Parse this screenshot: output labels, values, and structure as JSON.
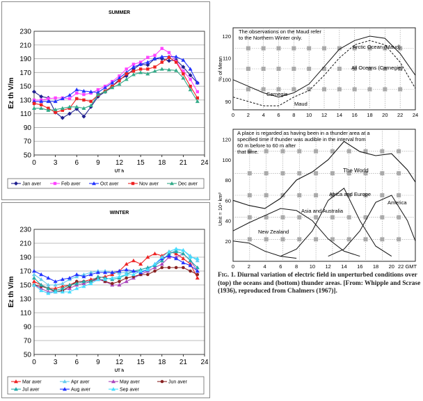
{
  "chart_data": [
    {
      "type": "line",
      "title": "SUMMER",
      "xlabel": "UT h",
      "ylabel": "Ez th V/m",
      "xlim": [
        0,
        24
      ],
      "ylim": [
        50,
        230
      ],
      "x_ticks": [
        "0",
        "3",
        "6",
        "9",
        "12",
        "15",
        "18",
        "21",
        "24"
      ],
      "y_ticks": [
        "50",
        "70",
        "90",
        "110",
        "130",
        "150",
        "170",
        "190",
        "210",
        "230"
      ],
      "grid": true,
      "legend": "bottom",
      "x": [
        0,
        1,
        2,
        3,
        4,
        5,
        6,
        7,
        8,
        9,
        10,
        11,
        12,
        13,
        14,
        15,
        16,
        17,
        18,
        19,
        20,
        21,
        22,
        23
      ],
      "series": [
        {
          "name": "Jan aver",
          "color": "#1f1f8f",
          "marker": "diamond",
          "values": [
            142,
            135,
            133,
            112,
            104,
            110,
            117,
            106,
            120,
            135,
            142,
            150,
            160,
            165,
            175,
            182,
            181,
            190,
            190,
            187,
            188,
            178,
            166,
            155
          ]
        },
        {
          "name": "Feb aver",
          "color": "#ff44ff",
          "marker": "square",
          "values": [
            130,
            130,
            132,
            133,
            133,
            132,
            140,
            138,
            140,
            145,
            150,
            157,
            165,
            175,
            182,
            185,
            192,
            195,
            205,
            199,
            186,
            172,
            160,
            142
          ]
        },
        {
          "name": "Oct aver",
          "color": "#2233ff",
          "marker": "triangle",
          "values": [
            128,
            128,
            128,
            128,
            132,
            137,
            145,
            143,
            142,
            141,
            148,
            155,
            162,
            170,
            178,
            182,
            185,
            190,
            193,
            193,
            193,
            188,
            175,
            155
          ]
        },
        {
          "name": "Nov aver",
          "color": "#ee2222",
          "marker": "square",
          "values": [
            125,
            123,
            118,
            112,
            115,
            118,
            132,
            130,
            128,
            137,
            143,
            150,
            158,
            168,
            172,
            175,
            175,
            178,
            185,
            192,
            185,
            168,
            150,
            133
          ]
        },
        {
          "name": "Dec aver",
          "color": "#33aa88",
          "marker": "triangle",
          "values": [
            118,
            118,
            115,
            116,
            118,
            120,
            120,
            118,
            122,
            138,
            142,
            148,
            153,
            160,
            167,
            170,
            168,
            172,
            175,
            174,
            173,
            162,
            145,
            128
          ]
        }
      ]
    },
    {
      "type": "line",
      "title": "WINTER",
      "xlabel": "UT h",
      "ylabel": "Ez th V/m",
      "xlim": [
        0,
        24
      ],
      "ylim": [
        50,
        230
      ],
      "x_ticks": [
        "0",
        "3",
        "6",
        "9",
        "12",
        "15",
        "18",
        "21",
        "24"
      ],
      "y_ticks": [
        "50",
        "70",
        "90",
        "110",
        "130",
        "150",
        "170",
        "190",
        "210",
        "230"
      ],
      "grid": true,
      "legend": "bottom",
      "x": [
        0,
        1,
        2,
        3,
        4,
        5,
        6,
        7,
        8,
        9,
        10,
        11,
        12,
        13,
        14,
        15,
        16,
        17,
        18,
        19,
        20,
        21,
        22,
        23
      ],
      "series": [
        {
          "name": "Mar aver",
          "color": "#ee2222",
          "marker": "triangle",
          "values": [
            155,
            150,
            145,
            145,
            148,
            150,
            155,
            155,
            158,
            160,
            162,
            165,
            170,
            180,
            185,
            180,
            190,
            195,
            192,
            198,
            195,
            188,
            180,
            160
          ]
        },
        {
          "name": "Apr aver",
          "color": "#66ccee",
          "marker": "triangle",
          "values": [
            165,
            158,
            150,
            150,
            152,
            158,
            162,
            165,
            168,
            170,
            170,
            168,
            167,
            168,
            170,
            172,
            175,
            178,
            185,
            195,
            200,
            200,
            192,
            185
          ]
        },
        {
          "name": "May aver",
          "color": "#aa44bb",
          "marker": "triangle",
          "values": [
            150,
            145,
            140,
            140,
            142,
            145,
            150,
            152,
            155,
            158,
            155,
            150,
            150,
            155,
            160,
            165,
            170,
            175,
            180,
            190,
            190,
            195,
            185,
            170
          ]
        },
        {
          "name": "Jun aver",
          "color": "#882222",
          "marker": "circle",
          "values": [
            150,
            148,
            145,
            140,
            142,
            148,
            155,
            155,
            155,
            160,
            155,
            152,
            155,
            160,
            162,
            165,
            165,
            170,
            175,
            175,
            175,
            175,
            170,
            165
          ]
        },
        {
          "name": "Jul aver",
          "color": "#22aaaa",
          "marker": "triangle",
          "values": [
            160,
            150,
            145,
            142,
            145,
            150,
            152,
            155,
            155,
            162,
            160,
            158,
            160,
            165,
            170,
            172,
            175,
            178,
            185,
            195,
            198,
            195,
            185,
            175
          ]
        },
        {
          "name": "Aug aver",
          "color": "#2233ff",
          "marker": "triangle",
          "values": [
            170,
            165,
            160,
            155,
            158,
            160,
            165,
            162,
            165,
            168,
            168,
            168,
            170,
            172,
            170,
            168,
            172,
            180,
            188,
            192,
            188,
            182,
            178,
            170
          ]
        },
        {
          "name": "Sep aver",
          "color": "#44ddff",
          "marker": "triangle",
          "values": [
            150,
            142,
            138,
            140,
            140,
            140,
            145,
            148,
            152,
            158,
            158,
            160,
            162,
            165,
            165,
            170,
            172,
            180,
            190,
            198,
            202,
            200,
            190,
            188
          ]
        }
      ]
    }
  ],
  "figure": {
    "caption_label": "Fig. 1.",
    "caption_text": "Diurnal variation of electric field in unperturbed conditions over (top) the oceans and (bottom) thunder areas. [From: Whipple and Scrase (1936), reproduced from Chalmers (1967)].",
    "top": {
      "note": "The observations on the Maud refer to the Northern Winter only.",
      "ylabel": "% of Mean",
      "y_ticks": [
        "90",
        "100",
        "110",
        "120"
      ],
      "x_ticks": [
        "0",
        "2",
        "4",
        "6",
        "8",
        "10",
        "12",
        "14",
        "16",
        "18",
        "20",
        "22",
        "24"
      ],
      "labels": [
        "Arctic Ocean (Maud)",
        "All Oceans (Carnegie)",
        "Carnegie",
        "Maud"
      ]
    },
    "bottom": {
      "note": "A place is regarded as having been in a thunder area at a specified time if thunder was audible in the interval from 60 m before to 60 m after that time.",
      "ylabel": "Unit = 10⁴ km²",
      "y_ticks": [
        "20",
        "40",
        "60",
        "80",
        "100",
        "120"
      ],
      "x_ticks": [
        "0",
        "2",
        "4",
        "6",
        "8",
        "10",
        "12",
        "14",
        "16",
        "18",
        "20",
        "22 GMT"
      ],
      "labels": [
        "The World",
        "Africa and Europe",
        "America",
        "Asia and Australia",
        "New Zealand"
      ]
    }
  }
}
